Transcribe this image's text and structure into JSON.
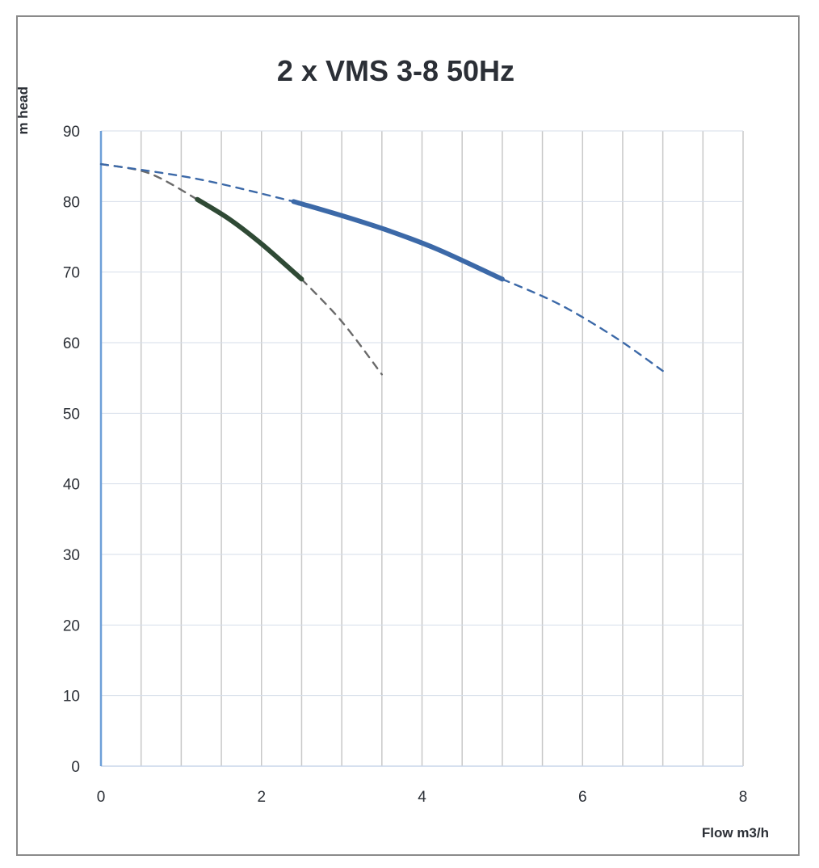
{
  "chart_data": {
    "type": "line",
    "title": "2 x VMS 3-8 50Hz",
    "xlabel": "Flow m3/h",
    "ylabel": "m head",
    "xlim": [
      0,
      8
    ],
    "ylim": [
      0,
      90
    ],
    "x_ticks": [
      "0",
      "2",
      "4",
      "6",
      "8"
    ],
    "y_ticks": [
      "0",
      "10",
      "20",
      "30",
      "40",
      "50",
      "60",
      "70",
      "80",
      "90"
    ],
    "grid": true,
    "legend": "none",
    "colors": {
      "single_pump": "#2f4a35",
      "single_pump_dashed": "#6a6a6a",
      "twin_pump": "#3c69a8",
      "twin_pump_dashed": "#3c69a8",
      "grid": "#c8c8c8",
      "y_axis": "#6d9fd8"
    },
    "series": [
      {
        "style": "dashed",
        "color_key": "single_pump_dashed",
        "x": [
          0,
          0.6,
          1.2
        ],
        "y": [
          85.3,
          84.0,
          80.3
        ]
      },
      {
        "style": "solid",
        "color_key": "single_pump",
        "x": [
          1.2,
          1.6,
          2.0,
          2.5
        ],
        "y": [
          80.3,
          77.5,
          74.0,
          69.0
        ]
      },
      {
        "style": "dashed",
        "color_key": "single_pump_dashed",
        "x": [
          2.5,
          3.0,
          3.5
        ],
        "y": [
          69.0,
          63.0,
          55.5
        ]
      },
      {
        "style": "dashed",
        "color_key": "twin_pump_dashed",
        "x": [
          0,
          1.2,
          2.4
        ],
        "y": [
          85.3,
          83.2,
          80.0
        ]
      },
      {
        "style": "solid",
        "color_key": "twin_pump",
        "x": [
          2.4,
          3.0,
          3.6,
          4.2,
          5.0
        ],
        "y": [
          80.0,
          78.0,
          75.8,
          73.2,
          69.0
        ]
      },
      {
        "style": "dashed",
        "color_key": "twin_pump_dashed",
        "x": [
          5.0,
          5.7,
          6.4,
          7.0
        ],
        "y": [
          69.0,
          65.5,
          60.8,
          56.0
        ]
      }
    ]
  }
}
